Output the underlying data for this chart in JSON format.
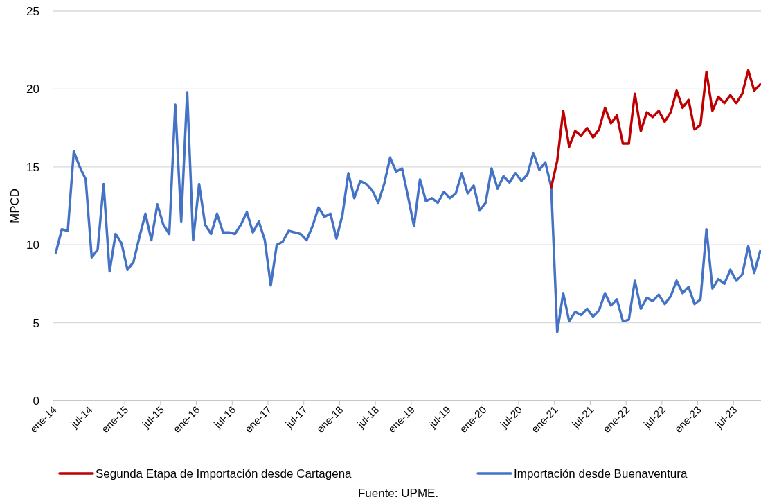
{
  "chart_data": {
    "type": "line",
    "ylabel": "MPCD",
    "categories": [
      "ene-14",
      null,
      null,
      null,
      null,
      null,
      "jul-14",
      null,
      null,
      null,
      null,
      null,
      "ene-15",
      null,
      null,
      null,
      null,
      null,
      "jul-15",
      null,
      null,
      null,
      null,
      null,
      "ene-16",
      null,
      null,
      null,
      null,
      null,
      "jul-16",
      null,
      null,
      null,
      null,
      null,
      "ene-17",
      null,
      null,
      null,
      null,
      null,
      "jul-17",
      null,
      null,
      null,
      null,
      null,
      "ene-18",
      null,
      null,
      null,
      null,
      null,
      "jul-18",
      null,
      null,
      null,
      null,
      null,
      "ene-19",
      null,
      null,
      null,
      null,
      null,
      "jul-19",
      null,
      null,
      null,
      null,
      null,
      "ene-20",
      null,
      null,
      null,
      null,
      null,
      "jul-20",
      null,
      null,
      null,
      null,
      null,
      "ene-21",
      null,
      null,
      null,
      null,
      null,
      "jul-21",
      null,
      null,
      null,
      null,
      null,
      "ene-22",
      null,
      null,
      null,
      null,
      null,
      "jul-22",
      null,
      null,
      null,
      null,
      null,
      "ene-23",
      null,
      null,
      null,
      null,
      null,
      "jul-23",
      null,
      null,
      null,
      null
    ],
    "series": [
      {
        "name": "Segunda Etapa de Importación desde Cartagena",
        "color": "#c00000",
        "values": [
          null,
          null,
          null,
          null,
          null,
          null,
          null,
          null,
          null,
          null,
          null,
          null,
          null,
          null,
          null,
          null,
          null,
          null,
          null,
          null,
          null,
          null,
          null,
          null,
          null,
          null,
          null,
          null,
          null,
          null,
          null,
          null,
          null,
          null,
          null,
          null,
          null,
          null,
          null,
          null,
          null,
          null,
          null,
          null,
          null,
          null,
          null,
          null,
          null,
          null,
          null,
          null,
          null,
          null,
          null,
          null,
          null,
          null,
          null,
          null,
          null,
          null,
          null,
          null,
          null,
          null,
          null,
          null,
          null,
          null,
          null,
          null,
          null,
          null,
          null,
          null,
          null,
          null,
          null,
          null,
          null,
          null,
          null,
          13.7,
          15.4,
          18.6,
          16.3,
          17.3,
          17.0,
          17.5,
          16.9,
          17.4,
          18.8,
          17.8,
          18.3,
          16.5,
          16.5,
          19.7,
          17.3,
          18.5,
          18.2,
          18.6,
          17.9,
          18.5,
          19.9,
          18.8,
          19.3,
          17.4,
          17.7,
          21.1,
          18.6,
          19.5,
          19.1,
          19.6,
          19.1,
          19.7,
          21.2,
          19.9,
          20.3
        ]
      },
      {
        "name": "Importación desde Buenaventura",
        "color": "#4472c4",
        "values": [
          9.5,
          11.0,
          10.9,
          16.0,
          15.0,
          14.2,
          9.2,
          9.7,
          13.9,
          8.3,
          10.7,
          10.1,
          8.4,
          8.9,
          10.5,
          12.0,
          10.3,
          12.6,
          11.3,
          10.7,
          19.0,
          11.5,
          19.8,
          10.3,
          13.9,
          11.3,
          10.7,
          12.0,
          10.8,
          10.8,
          10.7,
          11.3,
          12.1,
          10.8,
          11.5,
          10.3,
          7.4,
          10.0,
          10.2,
          10.9,
          10.8,
          10.7,
          10.3,
          11.2,
          12.4,
          11.8,
          12.0,
          10.4,
          11.9,
          14.6,
          13.0,
          14.1,
          13.9,
          13.5,
          12.7,
          13.9,
          15.6,
          14.7,
          14.9,
          13.1,
          11.2,
          14.2,
          12.8,
          13.0,
          12.7,
          13.4,
          13.0,
          13.3,
          14.6,
          13.3,
          13.8,
          12.2,
          12.7,
          14.9,
          13.6,
          14.4,
          14.0,
          14.6,
          14.1,
          14.5,
          15.9,
          14.8,
          15.3,
          13.7,
          4.4,
          6.9,
          5.1,
          5.7,
          5.5,
          5.9,
          5.4,
          5.8,
          6.9,
          6.1,
          6.5,
          5.1,
          5.2,
          7.7,
          5.9,
          6.6,
          6.4,
          6.8,
          6.2,
          6.7,
          7.7,
          6.9,
          7.3,
          6.2,
          6.5,
          11.0,
          7.2,
          7.8,
          7.5,
          8.4,
          7.7,
          8.1,
          9.9,
          8.2,
          9.6
        ]
      }
    ],
    "ylim": [
      0,
      25
    ],
    "yticks": [
      0,
      5,
      10,
      15,
      20,
      25
    ],
    "grid": "y",
    "legend": "bottom",
    "line_style": "solid",
    "marker": "none",
    "annotations": [
      "Fuente: UPME."
    ]
  }
}
